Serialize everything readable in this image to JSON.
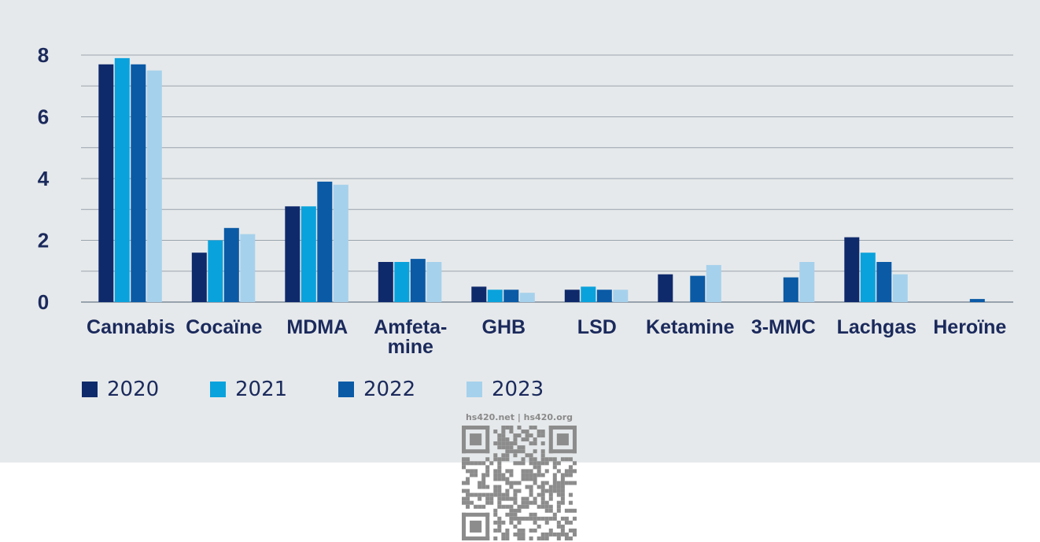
{
  "chart_data": {
    "type": "bar",
    "categories": [
      "Cannabis",
      "Cocaïne",
      "MDMA",
      "Amfeta-\nmine",
      "GHB",
      "LSD",
      "Ketamine",
      "3-MMC",
      "Lachgas",
      "Heroïne"
    ],
    "series": [
      {
        "name": "2020",
        "color": "#0f2a6b",
        "values": [
          7.7,
          1.6,
          3.1,
          1.3,
          0.5,
          0.4,
          0.9,
          null,
          2.1,
          null
        ]
      },
      {
        "name": "2021",
        "color": "#0aa2dc",
        "values": [
          7.9,
          2.0,
          3.1,
          1.3,
          0.4,
          0.5,
          null,
          null,
          1.6,
          null
        ]
      },
      {
        "name": "2022",
        "color": "#0a5aa6",
        "values": [
          7.7,
          2.4,
          3.9,
          1.4,
          0.4,
          0.4,
          0.85,
          0.8,
          1.3,
          0.1
        ]
      },
      {
        "name": "2023",
        "color": "#a6d1ec",
        "values": [
          7.5,
          2.2,
          3.8,
          1.3,
          0.3,
          0.4,
          1.2,
          1.3,
          0.9,
          null
        ]
      }
    ],
    "yticks": [
      0,
      2,
      4,
      6,
      8
    ],
    "ylim": [
      0,
      8
    ],
    "grid": true,
    "gridlines": [
      0,
      1,
      2,
      3,
      4,
      5,
      6,
      7,
      8
    ],
    "legend_position": "bottom-left",
    "title": "",
    "xlabel": "",
    "ylabel": ""
  },
  "watermark": {
    "text": "hs420.net | hs420.org",
    "qr_code_icon": "qr-code-icon"
  }
}
